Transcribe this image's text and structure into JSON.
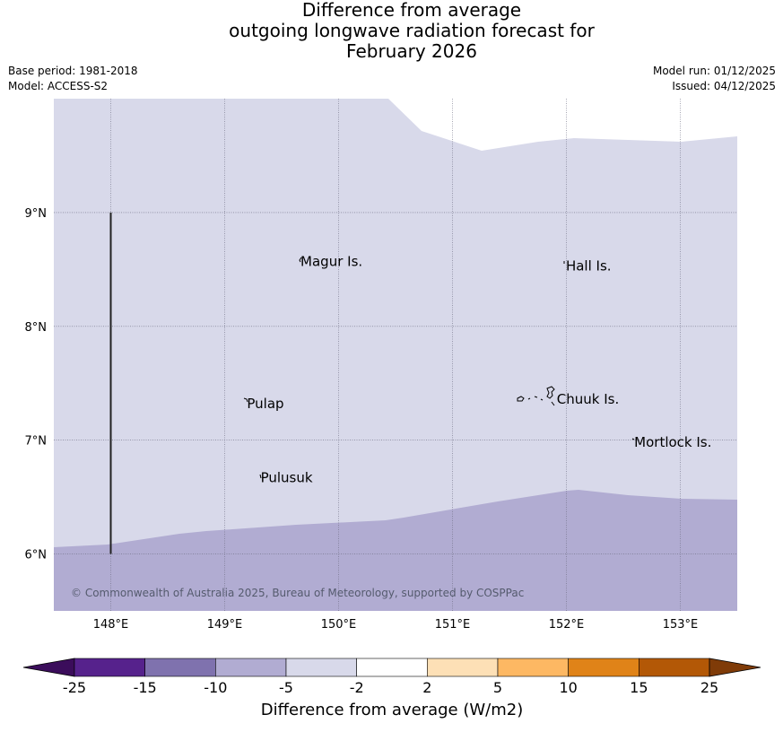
{
  "title": {
    "line1": "Difference from average",
    "line2": "outgoing longwave radiation forecast for",
    "line3": "February 2026"
  },
  "meta": {
    "base_period": "Base period: 1981-2018",
    "model": "Model: ACCESS-S2",
    "model_run": "Model run: 01/12/2025",
    "issued": "Issued: 04/12/2025"
  },
  "map": {
    "lon_range": [
      147.5,
      153.5
    ],
    "lat_range": [
      5.5,
      10.0
    ],
    "lon_ticks": [
      148,
      149,
      150,
      151,
      152,
      153
    ],
    "lat_ticks": [
      6,
      7,
      8,
      9
    ],
    "lon_labels": [
      "148°E",
      "149°E",
      "150°E",
      "151°E",
      "152°E",
      "153°E"
    ],
    "lat_labels": [
      "6°N",
      "7°N",
      "8°N",
      "9°N"
    ],
    "copyright": "© Commonwealth of Australia 2025, Bureau of Meteorology, supported by COSPPac",
    "places": [
      {
        "name": "Magur Is.",
        "lon": 149.65,
        "lat": 8.57
      },
      {
        "name": "Hall Is.",
        "lon": 151.98,
        "lat": 8.53
      },
      {
        "name": "Pulap",
        "lon": 149.18,
        "lat": 7.32
      },
      {
        "name": "Chuuk Is.",
        "lon": 151.9,
        "lat": 7.36
      },
      {
        "name": "Mortlock Is.",
        "lon": 152.58,
        "lat": 6.98
      },
      {
        "name": "Pulusuk",
        "lon": 149.3,
        "lat": 6.67
      }
    ],
    "regions": [
      {
        "category": "-5 to -2",
        "color": "#d8d9ea"
      },
      {
        "category": "-10 to -5",
        "color": "#b1acd2"
      },
      {
        "category": "no data",
        "color": "#ffffff"
      }
    ],
    "boundary_line": {
      "lon": 148.0,
      "lat_from": 6.0,
      "lat_to": 9.0
    }
  },
  "colorbar": {
    "title": "Difference from average (W/m2)",
    "ticks": [
      "-25",
      "-15",
      "-10",
      "-5",
      "-2",
      "2",
      "5",
      "10",
      "15",
      "25"
    ],
    "colors": [
      "#3b0d5b",
      "#56228c",
      "#7f72ae",
      "#b1acd2",
      "#d8d9ea",
      "#ffffff",
      "#fde0b6",
      "#fdb863",
      "#e08318",
      "#b35806",
      "#7f3b08"
    ]
  }
}
